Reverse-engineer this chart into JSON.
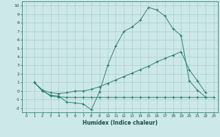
{
  "xlabel": "Humidex (Indice chaleur)",
  "xlim": [
    -0.5,
    23.5
  ],
  "ylim": [
    -2.5,
    10.5
  ],
  "yticks": [
    -2,
    -1,
    0,
    1,
    2,
    3,
    4,
    5,
    6,
    7,
    8,
    9,
    10
  ],
  "xticks": [
    0,
    1,
    2,
    3,
    4,
    5,
    6,
    7,
    8,
    9,
    10,
    11,
    12,
    13,
    14,
    15,
    16,
    17,
    18,
    19,
    20,
    21,
    22,
    23
  ],
  "line_color": "#2a7d70",
  "bg_color": "#cde8e8",
  "grid_color": "#a8cccc",
  "line1_x": [
    1,
    2,
    3,
    4,
    5,
    6,
    7,
    8,
    9,
    10,
    11,
    12,
    13,
    14,
    15,
    16,
    17,
    18,
    19,
    20,
    21,
    22
  ],
  "line1_y": [
    1.0,
    0.0,
    -0.5,
    -0.6,
    -1.3,
    -1.4,
    -1.5,
    -2.2,
    -0.1,
    3.0,
    5.3,
    7.0,
    7.5,
    8.3,
    9.8,
    9.5,
    8.8,
    7.3,
    6.5,
    1.2,
    0.1,
    -0.7
  ],
  "line2_x": [
    1,
    2,
    3,
    4,
    5,
    6,
    7,
    8,
    9,
    10,
    11,
    12,
    13,
    14,
    15,
    16,
    17,
    18,
    19,
    20,
    21,
    22,
    23
  ],
  "line2_y": [
    1.0,
    0.1,
    -0.6,
    -0.7,
    -0.75,
    -0.75,
    -0.75,
    -0.75,
    -0.75,
    -0.75,
    -0.75,
    -0.75,
    -0.75,
    -0.75,
    -0.75,
    -0.75,
    -0.75,
    -0.75,
    -0.75,
    -0.75,
    -0.75,
    -0.75,
    -0.75
  ],
  "line3_x": [
    1,
    2,
    3,
    4,
    5,
    6,
    7,
    8,
    9,
    10,
    11,
    12,
    13,
    14,
    15,
    16,
    17,
    18,
    19,
    20,
    21,
    22
  ],
  "line3_y": [
    1.0,
    0.1,
    -0.2,
    -0.3,
    -0.2,
    0.0,
    0.0,
    0.2,
    0.5,
    0.9,
    1.3,
    1.7,
    2.1,
    2.5,
    2.9,
    3.4,
    3.8,
    4.2,
    4.6,
    2.5,
    1.2,
    -0.2
  ]
}
